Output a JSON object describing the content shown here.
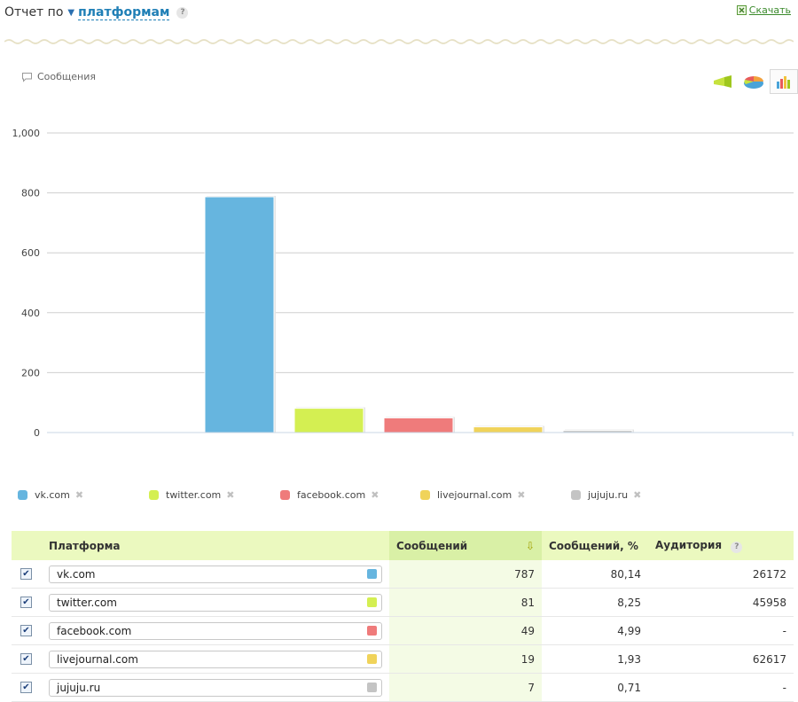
{
  "header": {
    "title": "Отчет по",
    "mode_label": "платформам",
    "download_label": "Скачать"
  },
  "series_title": "Сообщения",
  "chart_switch": [
    {
      "name": "funnel",
      "active": false
    },
    {
      "name": "pie",
      "active": false
    },
    {
      "name": "bar",
      "active": true
    }
  ],
  "chart_data": {
    "type": "bar",
    "title": "",
    "xlabel": "",
    "ylabel": "",
    "ylim": [
      0,
      1000
    ],
    "yticks": [
      "0",
      "200",
      "400",
      "600",
      "800",
      "1,000"
    ],
    "grid": true,
    "legend_position": "bottom",
    "categories": [
      "vk.com",
      "twitter.com",
      "facebook.com",
      "livejournal.com",
      "jujuju.ru"
    ],
    "values": [
      787,
      81,
      49,
      19,
      7
    ],
    "colors": [
      "#66b5df",
      "#d4ef52",
      "#ef7b7b",
      "#f0d35a",
      "#c4c4c4"
    ]
  },
  "legend": [
    {
      "label": "vk.com",
      "color": "#66b5df"
    },
    {
      "label": "twitter.com",
      "color": "#d4ef52"
    },
    {
      "label": "facebook.com",
      "color": "#ef7b7b"
    },
    {
      "label": "livejournal.com",
      "color": "#f0d35a"
    },
    {
      "label": "jujuju.ru",
      "color": "#c4c4c4"
    }
  ],
  "table": {
    "columns": [
      "Платформа",
      "Сообщений",
      "Сообщений, %",
      "Аудитория"
    ],
    "sorted_column": "Сообщений",
    "rows": [
      {
        "checked": true,
        "platform": "vk.com",
        "color": "#66b5df",
        "messages": "787",
        "percent": "80,14",
        "audience": "26172"
      },
      {
        "checked": true,
        "platform": "twitter.com",
        "color": "#d4ef52",
        "messages": "81",
        "percent": "8,25",
        "audience": "45958"
      },
      {
        "checked": true,
        "platform": "facebook.com",
        "color": "#ef7b7b",
        "messages": "49",
        "percent": "4,99",
        "audience": "-"
      },
      {
        "checked": true,
        "platform": "livejournal.com",
        "color": "#f0d35a",
        "messages": "19",
        "percent": "1,93",
        "audience": "62617"
      },
      {
        "checked": true,
        "platform": "jujuju.ru",
        "color": "#c4c4c4",
        "messages": "7",
        "percent": "0,71",
        "audience": "-"
      }
    ]
  }
}
